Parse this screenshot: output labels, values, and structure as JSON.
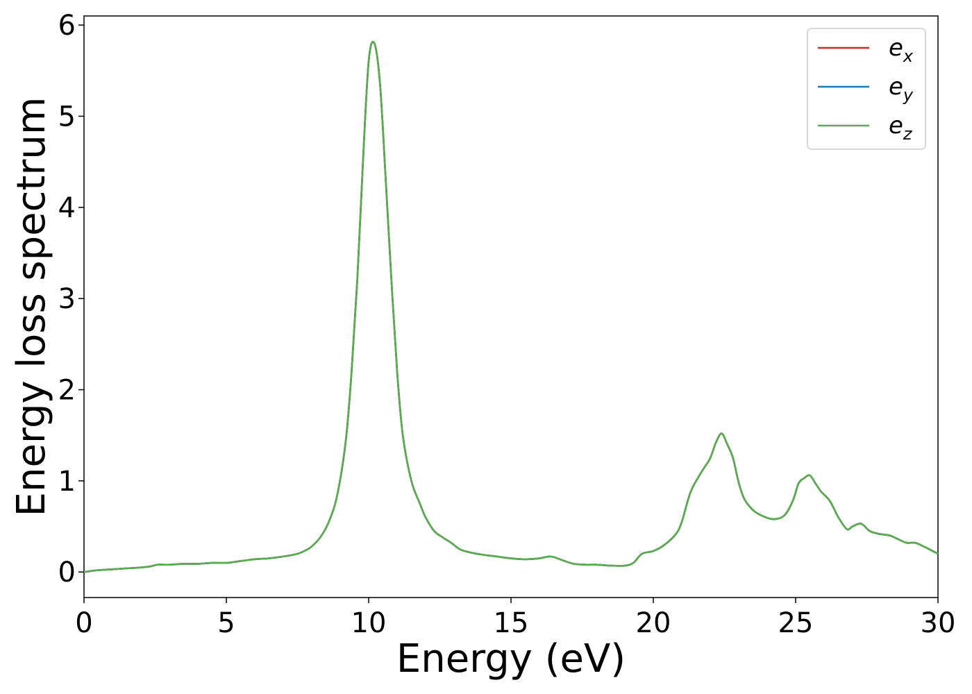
{
  "chart_data": {
    "type": "line",
    "title": "",
    "xlabel": "Energy (eV)",
    "ylabel": "Energy loss spectrum",
    "xlim": [
      0,
      30
    ],
    "ylim": [
      -0.28,
      6.1
    ],
    "xticks": [
      0,
      5,
      10,
      15,
      20,
      25,
      30
    ],
    "yticks": [
      0,
      1,
      2,
      3,
      4,
      5,
      6
    ],
    "grid": false,
    "legend_position": "top-right",
    "x": [
      0,
      0.5,
      1,
      1.5,
      2,
      2.3,
      2.6,
      3,
      3.5,
      4,
      4.5,
      5,
      5.5,
      6,
      6.5,
      7,
      7.5,
      7.8,
      8,
      8.3,
      8.6,
      8.9,
      9.2,
      9.4,
      9.6,
      9.8,
      10.0,
      10.2,
      10.4,
      10.6,
      10.8,
      11.0,
      11.2,
      11.5,
      11.8,
      12.0,
      12.3,
      12.6,
      12.9,
      13.2,
      13.5,
      14,
      14.5,
      15,
      15.5,
      16,
      16.4,
      16.8,
      17.2,
      17.6,
      18,
      18.5,
      19,
      19.3,
      19.6,
      20,
      20.4,
      20.8,
      21.0,
      21.3,
      21.6,
      21.8,
      22.0,
      22.2,
      22.4,
      22.6,
      22.8,
      23.0,
      23.2,
      23.5,
      23.8,
      24.2,
      24.6,
      24.9,
      25.1,
      25.3,
      25.5,
      25.7,
      25.9,
      26.2,
      26.5,
      26.8,
      27.0,
      27.3,
      27.6,
      27.9,
      28.3,
      28.6,
      28.9,
      29.2,
      29.5,
      30
    ],
    "colors": {
      "e_x": "#d62728",
      "e_y": "#1f77b4",
      "e_z": "#5aac4d"
    },
    "series": [
      {
        "name": "e",
        "subscript": "x",
        "colorKey": "e_x"
      },
      {
        "name": "e",
        "subscript": "y",
        "colorKey": "e_y"
      },
      {
        "name": "e",
        "subscript": "z",
        "colorKey": "e_z"
      }
    ],
    "values": [
      0.0,
      0.02,
      0.03,
      0.04,
      0.05,
      0.06,
      0.08,
      0.08,
      0.09,
      0.09,
      0.1,
      0.1,
      0.12,
      0.14,
      0.15,
      0.17,
      0.2,
      0.24,
      0.28,
      0.38,
      0.55,
      0.85,
      1.45,
      2.2,
      3.2,
      4.5,
      5.6,
      5.8,
      5.35,
      4.3,
      3.2,
      2.2,
      1.5,
      1.0,
      0.75,
      0.6,
      0.45,
      0.38,
      0.32,
      0.25,
      0.22,
      0.19,
      0.17,
      0.15,
      0.14,
      0.15,
      0.17,
      0.13,
      0.09,
      0.08,
      0.08,
      0.07,
      0.07,
      0.1,
      0.2,
      0.23,
      0.3,
      0.42,
      0.55,
      0.87,
      1.05,
      1.15,
      1.25,
      1.42,
      1.52,
      1.4,
      1.25,
      0.98,
      0.8,
      0.68,
      0.62,
      0.58,
      0.62,
      0.78,
      0.97,
      1.03,
      1.06,
      0.97,
      0.88,
      0.78,
      0.6,
      0.47,
      0.5,
      0.53,
      0.45,
      0.42,
      0.4,
      0.36,
      0.32,
      0.32,
      0.28,
      0.2
    ]
  }
}
